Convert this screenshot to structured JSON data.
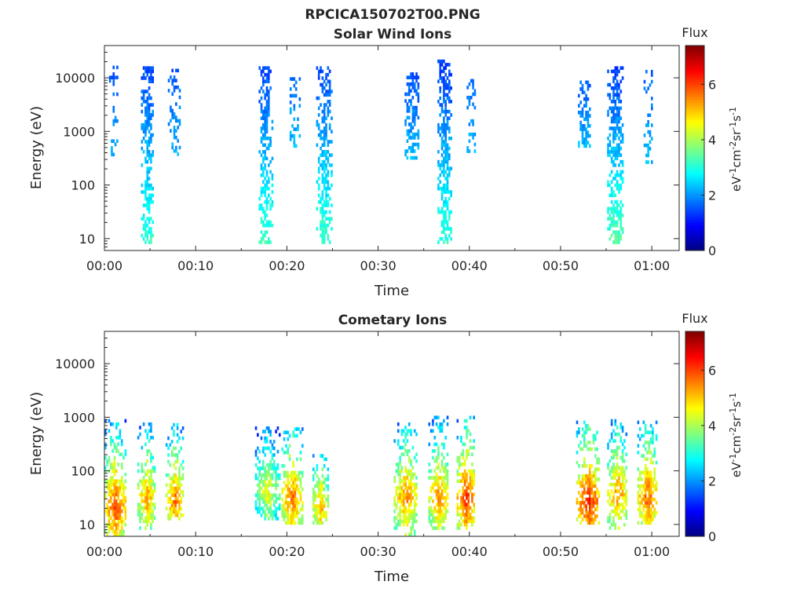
{
  "figure": {
    "main_title": "RPCICA150702T00.PNG"
  },
  "chart_data": [
    {
      "type": "heatmap",
      "title": "Solar Wind Ions",
      "xlabel": "Time",
      "ylabel": "Energy (eV)",
      "y_scale": "log",
      "xlim": [
        "00:00",
        "01:03"
      ],
      "ylim": [
        6,
        40000
      ],
      "grid": false,
      "x_ticks": [
        "00:00",
        "00:10",
        "00:20",
        "00:30",
        "00:40",
        "00:50",
        "01:00"
      ],
      "y_ticks": [
        "10",
        "100",
        "1000",
        "10000"
      ],
      "colorbar": {
        "label": "Flux",
        "unit_text": "eV-1cm-2sr-1s-1",
        "min": 0,
        "max": 7.4,
        "ticks": [
          "0",
          "2",
          "4",
          "6"
        ],
        "colormap": "jet"
      },
      "bursts": [
        {
          "t": 0.9,
          "w": 0.8,
          "emin": 300,
          "emax": 15000,
          "vmin": 1.5,
          "vmax": 2.3
        },
        {
          "t": 4.7,
          "w": 1.4,
          "emin": 8,
          "emax": 15000,
          "vmin": 1.4,
          "vmax": 3.1
        },
        {
          "t": 7.6,
          "w": 1.3,
          "emin": 350,
          "emax": 14000,
          "vmin": 1.5,
          "vmax": 2.2
        },
        {
          "t": 17.6,
          "w": 1.4,
          "emin": 8,
          "emax": 15000,
          "vmin": 1.4,
          "vmax": 3.2
        },
        {
          "t": 20.8,
          "w": 1.0,
          "emin": 500,
          "emax": 12000,
          "vmin": 1.6,
          "vmax": 2.3
        },
        {
          "t": 24.0,
          "w": 1.6,
          "emin": 8,
          "emax": 15000,
          "vmin": 1.4,
          "vmax": 3.2
        },
        {
          "t": 33.7,
          "w": 1.6,
          "emin": 300,
          "emax": 12000,
          "vmin": 1.5,
          "vmax": 2.3
        },
        {
          "t": 37.3,
          "w": 1.6,
          "emin": 8,
          "emax": 20000,
          "vmin": 1.3,
          "vmax": 3.1
        },
        {
          "t": 40.2,
          "w": 1.0,
          "emin": 400,
          "emax": 12000,
          "vmin": 1.6,
          "vmax": 2.3
        },
        {
          "t": 52.6,
          "w": 1.4,
          "emin": 500,
          "emax": 8000,
          "vmin": 1.6,
          "vmax": 2.3
        },
        {
          "t": 56.0,
          "w": 1.8,
          "emin": 8,
          "emax": 15000,
          "vmin": 1.3,
          "vmax": 3.4
        },
        {
          "t": 59.6,
          "w": 1.0,
          "emin": 250,
          "emax": 13000,
          "vmin": 1.6,
          "vmax": 2.3
        }
      ]
    },
    {
      "type": "heatmap",
      "title": "Cometary Ions",
      "xlabel": "Time",
      "ylabel": "Energy (eV)",
      "y_scale": "log",
      "xlim": [
        "00:00",
        "01:03"
      ],
      "ylim": [
        6,
        40000
      ],
      "grid": false,
      "x_ticks": [
        "00:00",
        "00:10",
        "00:20",
        "00:30",
        "00:40",
        "00:50",
        "01:00"
      ],
      "y_ticks": [
        "10",
        "100",
        "1000",
        "10000"
      ],
      "colorbar": {
        "label": "Flux",
        "unit_text": "eV-1cm-2sr-1s-1",
        "min": 0,
        "max": 7.4,
        "ticks": [
          "0",
          "2",
          "4",
          "6"
        ],
        "colormap": "jet"
      },
      "bursts": [
        {
          "t": 1.1,
          "w": 2.2,
          "emin": 6,
          "emax": 900,
          "peak_e": 20,
          "vmax": 6.1
        },
        {
          "t": 4.6,
          "w": 2.0,
          "emin": 8,
          "emax": 700,
          "peak_e": 30,
          "vmax": 5.4
        },
        {
          "t": 7.7,
          "w": 2.0,
          "emin": 12,
          "emax": 700,
          "peak_e": 25,
          "vmax": 5.7
        },
        {
          "t": 17.8,
          "w": 2.6,
          "emin": 12,
          "emax": 600,
          "peak_e": 40,
          "vmax": 4.7
        },
        {
          "t": 20.5,
          "w": 2.2,
          "emin": 10,
          "emax": 600,
          "peak_e": 30,
          "vmax": 5.8
        },
        {
          "t": 23.6,
          "w": 1.6,
          "emin": 10,
          "emax": 200,
          "peak_e": 20,
          "vmax": 5.3
        },
        {
          "t": 33.0,
          "w": 2.6,
          "emin": 6,
          "emax": 800,
          "peak_e": 30,
          "vmax": 5.6
        },
        {
          "t": 36.6,
          "w": 2.2,
          "emin": 8,
          "emax": 1000,
          "peak_e": 30,
          "vmax": 5.6
        },
        {
          "t": 39.6,
          "w": 2.0,
          "emin": 8,
          "emax": 1000,
          "peak_e": 30,
          "vmax": 6.2
        },
        {
          "t": 53.0,
          "w": 2.6,
          "emin": 10,
          "emax": 800,
          "peak_e": 25,
          "vmax": 6.3
        },
        {
          "t": 56.2,
          "w": 2.2,
          "emin": 8,
          "emax": 900,
          "peak_e": 35,
          "vmax": 5.6
        },
        {
          "t": 59.5,
          "w": 2.2,
          "emin": 10,
          "emax": 800,
          "peak_e": 30,
          "vmax": 5.9
        }
      ]
    }
  ]
}
